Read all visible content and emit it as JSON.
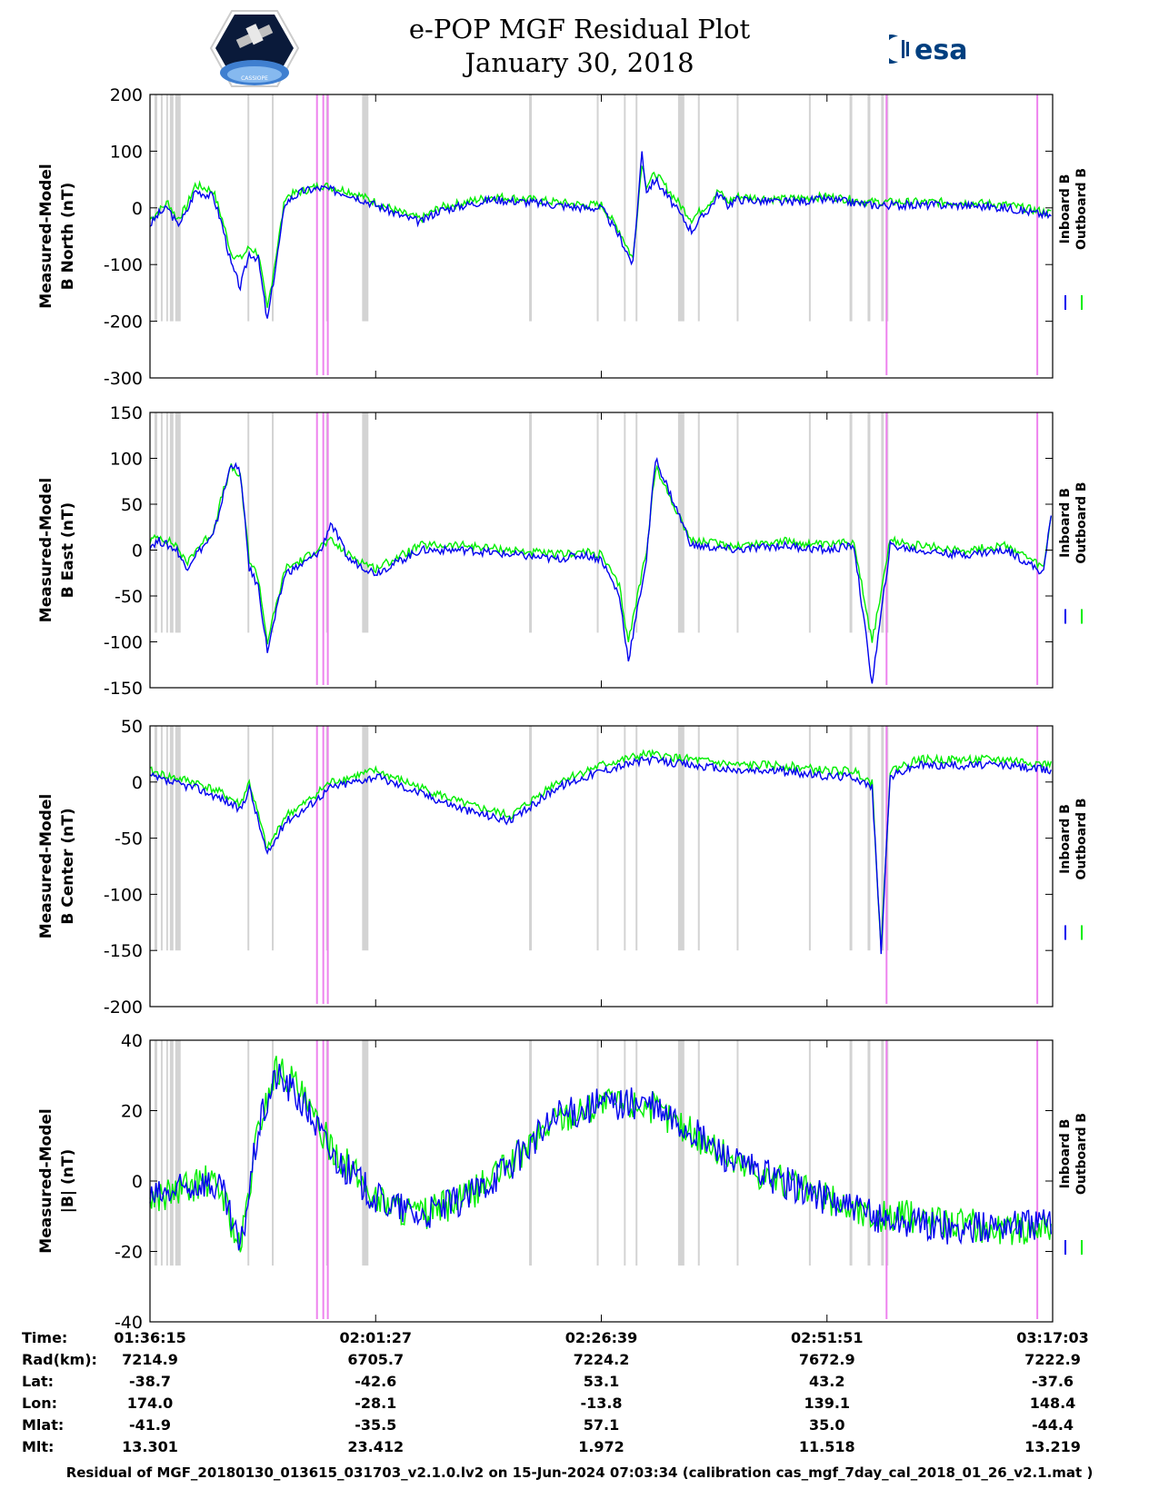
{
  "title": {
    "line1": "e-POP MGF Residual Plot",
    "line2": "January 30, 2018"
  },
  "logos": {
    "left_icon": "cassiope-mission-logo",
    "left_text": "CASSIOPE",
    "right_icon": "esa-logo",
    "right_text": "esa"
  },
  "colors": {
    "inboard": "#0000ee",
    "outboard": "#00ee00",
    "gap_gray": "#d3d3d3",
    "gap_pink": "#ee82ee"
  },
  "legend": {
    "inboard": "Inboard B",
    "outboard": "Outboard B"
  },
  "x_ticks": [
    "01:36:15",
    "02:01:27",
    "02:26:39",
    "02:51:51",
    "03:17:03"
  ],
  "info_table": {
    "rows": [
      {
        "label": "Time:",
        "values": [
          "01:36:15",
          "02:01:27",
          "02:26:39",
          "02:51:51",
          "03:17:03"
        ]
      },
      {
        "label": "Rad(km):",
        "values": [
          "7214.9",
          "6705.7",
          "7224.2",
          "7672.9",
          "7222.9"
        ]
      },
      {
        "label": "Lat:",
        "values": [
          "-38.7",
          "-42.6",
          "53.1",
          "43.2",
          "-37.6"
        ]
      },
      {
        "label": "Lon:",
        "values": [
          "174.0",
          "-28.1",
          "-13.8",
          "139.1",
          "148.4"
        ]
      },
      {
        "label": "Mlat:",
        "values": [
          "-41.9",
          "-35.5",
          "57.1",
          "35.0",
          "-44.4"
        ]
      },
      {
        "label": "Mlt:",
        "values": [
          "13.301",
          "23.412",
          "1.972",
          "11.518",
          "13.219"
        ]
      }
    ]
  },
  "footer": "Residual of MGF_20180130_013615_031703_v2.1.0.lv2 on 15-Jun-2024 07:03:34 (calibration cas_mgf_7day_cal_2018_01_26_v2.1.mat )",
  "chart_data": [
    {
      "type": "line",
      "ylabel": [
        "Measured-Model",
        "B North (nT)"
      ],
      "ylim": [
        -300,
        200
      ],
      "yticks": [
        200,
        100,
        0,
        -100,
        -200,
        -300
      ],
      "series": [
        {
          "name": "Outboard B",
          "x": [
            0,
            0.01,
            0.02,
            0.03,
            0.04,
            0.05,
            0.07,
            0.08,
            0.09,
            0.1,
            0.11,
            0.12,
            0.13,
            0.15,
            0.17,
            0.19,
            0.22,
            0.25,
            0.28,
            0.3,
            0.32,
            0.35,
            0.38,
            0.42,
            0.45,
            0.48,
            0.5,
            0.52,
            0.535,
            0.545,
            0.55,
            0.56,
            0.6,
            0.62,
            0.63,
            0.64,
            0.65,
            0.7,
            0.75,
            0.8,
            0.85,
            0.9,
            0.95,
            1.0
          ],
          "values": [
            -20,
            -5,
            10,
            -20,
            0,
            40,
            30,
            -20,
            -80,
            -90,
            -70,
            -80,
            -180,
            20,
            30,
            40,
            30,
            10,
            -10,
            -20,
            0,
            10,
            20,
            15,
            10,
            5,
            5,
            -40,
            -90,
            80,
            40,
            60,
            -20,
            10,
            30,
            10,
            20,
            15,
            20,
            10,
            10,
            10,
            5,
            -10
          ]
        },
        {
          "name": "Inboard B",
          "x": [
            0,
            0.01,
            0.02,
            0.03,
            0.04,
            0.05,
            0.07,
            0.08,
            0.09,
            0.1,
            0.11,
            0.12,
            0.13,
            0.15,
            0.17,
            0.19,
            0.22,
            0.25,
            0.28,
            0.3,
            0.32,
            0.35,
            0.38,
            0.42,
            0.45,
            0.48,
            0.5,
            0.52,
            0.535,
            0.545,
            0.55,
            0.56,
            0.6,
            0.62,
            0.63,
            0.64,
            0.65,
            0.7,
            0.75,
            0.8,
            0.85,
            0.9,
            0.95,
            1.0
          ],
          "values": [
            -30,
            -10,
            0,
            -30,
            -10,
            30,
            20,
            -30,
            -100,
            -140,
            -80,
            -90,
            -200,
            10,
            30,
            35,
            25,
            5,
            -15,
            -25,
            -5,
            5,
            15,
            10,
            5,
            0,
            0,
            -50,
            -100,
            100,
            30,
            50,
            -40,
            0,
            25,
            5,
            15,
            10,
            15,
            5,
            5,
            5,
            0,
            -15
          ]
        }
      ]
    },
    {
      "type": "line",
      "ylabel": [
        "Measured-Model",
        "B East (nT)"
      ],
      "ylim": [
        -150,
        150
      ],
      "yticks": [
        150,
        100,
        50,
        0,
        -50,
        -100,
        -150
      ],
      "series": [
        {
          "name": "Outboard B",
          "x": [
            0,
            0.01,
            0.02,
            0.03,
            0.04,
            0.05,
            0.07,
            0.08,
            0.09,
            0.1,
            0.11,
            0.12,
            0.13,
            0.15,
            0.17,
            0.19,
            0.2,
            0.22,
            0.25,
            0.3,
            0.35,
            0.4,
            0.45,
            0.48,
            0.5,
            0.52,
            0.53,
            0.55,
            0.56,
            0.6,
            0.65,
            0.7,
            0.75,
            0.78,
            0.8,
            0.82,
            0.85,
            0.9,
            0.95,
            0.99,
            1.0
          ],
          "values": [
            10,
            15,
            10,
            5,
            -15,
            0,
            20,
            60,
            90,
            80,
            -10,
            -30,
            -100,
            -20,
            -10,
            5,
            10,
            -5,
            -20,
            5,
            5,
            0,
            -5,
            -2,
            -5,
            -40,
            -100,
            0,
            90,
            10,
            5,
            10,
            5,
            10,
            -100,
            10,
            5,
            0,
            5,
            -20,
            50
          ]
        },
        {
          "name": "Inboard B",
          "x": [
            0,
            0.01,
            0.02,
            0.03,
            0.04,
            0.05,
            0.07,
            0.08,
            0.09,
            0.1,
            0.11,
            0.12,
            0.13,
            0.15,
            0.17,
            0.19,
            0.2,
            0.22,
            0.25,
            0.3,
            0.35,
            0.4,
            0.45,
            0.48,
            0.5,
            0.52,
            0.53,
            0.55,
            0.56,
            0.6,
            0.65,
            0.7,
            0.75,
            0.78,
            0.8,
            0.82,
            0.85,
            0.9,
            0.95,
            0.99,
            1.0
          ],
          "values": [
            5,
            10,
            5,
            0,
            -20,
            -5,
            15,
            55,
            95,
            85,
            -20,
            -40,
            -110,
            -25,
            -15,
            0,
            30,
            -10,
            -25,
            0,
            0,
            -5,
            -10,
            -5,
            -10,
            -50,
            -120,
            -10,
            100,
            5,
            0,
            5,
            0,
            5,
            -145,
            5,
            0,
            -5,
            0,
            -25,
            55
          ]
        }
      ]
    },
    {
      "type": "line",
      "ylabel": [
        "Measured-Model",
        "B Center (nT)"
      ],
      "ylim": [
        -200,
        50
      ],
      "yticks": [
        50,
        0,
        -50,
        -100,
        -150,
        -200
      ],
      "series": [
        {
          "name": "Outboard B",
          "x": [
            0,
            0.02,
            0.05,
            0.08,
            0.1,
            0.11,
            0.13,
            0.15,
            0.17,
            0.2,
            0.25,
            0.3,
            0.35,
            0.4,
            0.45,
            0.5,
            0.55,
            0.6,
            0.65,
            0.7,
            0.75,
            0.78,
            0.8,
            0.81,
            0.82,
            0.85,
            0.9,
            0.95,
            1.0
          ],
          "values": [
            10,
            5,
            0,
            -10,
            -20,
            0,
            -60,
            -30,
            -20,
            0,
            10,
            -5,
            -20,
            -30,
            0,
            15,
            25,
            20,
            15,
            15,
            10,
            10,
            0,
            -150,
            10,
            20,
            20,
            20,
            15
          ]
        },
        {
          "name": "Inboard B",
          "x": [
            0,
            0.02,
            0.05,
            0.08,
            0.1,
            0.11,
            0.13,
            0.15,
            0.17,
            0.2,
            0.25,
            0.3,
            0.35,
            0.4,
            0.45,
            0.5,
            0.55,
            0.6,
            0.65,
            0.7,
            0.75,
            0.78,
            0.8,
            0.81,
            0.82,
            0.85,
            0.9,
            0.95,
            1.0
          ],
          "values": [
            5,
            0,
            -5,
            -15,
            -25,
            -5,
            -65,
            -35,
            -25,
            -5,
            5,
            -10,
            -25,
            -35,
            -5,
            10,
            20,
            15,
            10,
            10,
            5,
            5,
            -5,
            -150,
            5,
            15,
            15,
            15,
            10
          ]
        }
      ]
    },
    {
      "type": "line",
      "ylabel": [
        "Measured-Model",
        "|B| (nT)"
      ],
      "ylim": [
        -40,
        40
      ],
      "yticks": [
        40,
        20,
        0,
        -20,
        -40
      ],
      "series": [
        {
          "name": "Outboard B",
          "x": [
            0,
            0.03,
            0.06,
            0.08,
            0.1,
            0.12,
            0.14,
            0.16,
            0.18,
            0.2,
            0.25,
            0.3,
            0.35,
            0.4,
            0.45,
            0.5,
            0.55,
            0.6,
            0.65,
            0.7,
            0.75,
            0.8,
            0.85,
            0.9,
            0.95,
            1.0
          ],
          "values": [
            -5,
            -3,
            0,
            -3,
            -20,
            15,
            32,
            28,
            18,
            10,
            -5,
            -10,
            -5,
            5,
            18,
            22,
            22,
            14,
            5,
            0,
            -5,
            -10,
            -10,
            -12,
            -14,
            -12
          ]
        },
        {
          "name": "Inboard B",
          "x": [
            0,
            0.03,
            0.06,
            0.08,
            0.1,
            0.12,
            0.14,
            0.16,
            0.18,
            0.2,
            0.25,
            0.3,
            0.35,
            0.4,
            0.45,
            0.5,
            0.55,
            0.6,
            0.65,
            0.7,
            0.75,
            0.8,
            0.85,
            0.9,
            0.95,
            1.0
          ],
          "values": [
            -5,
            -3,
            0,
            -3,
            -20,
            15,
            30,
            25,
            18,
            8,
            -5,
            -10,
            -5,
            5,
            18,
            22,
            22,
            14,
            5,
            0,
            -5,
            -10,
            -12,
            -14,
            -12,
            -12
          ]
        }
      ]
    }
  ]
}
